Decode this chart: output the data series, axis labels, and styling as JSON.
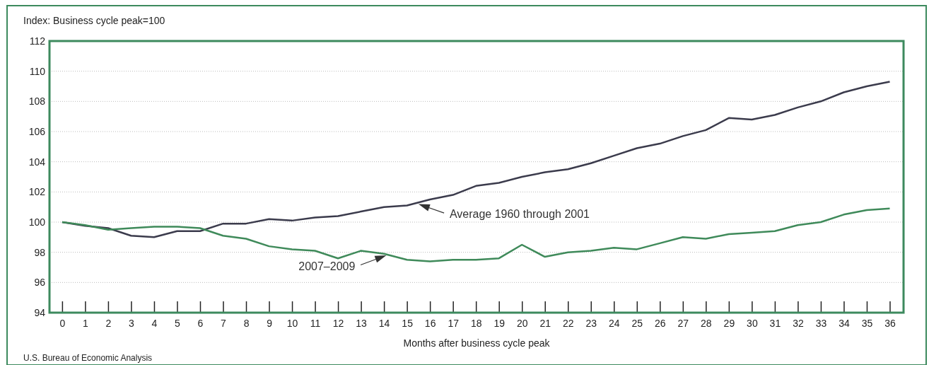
{
  "chart_data": {
    "type": "line",
    "ylabel": "Index: Business cycle peak=100",
    "xlabel": "Months after business cycle peak",
    "x": [
      0,
      1,
      2,
      3,
      4,
      5,
      6,
      7,
      8,
      9,
      10,
      11,
      12,
      13,
      14,
      15,
      16,
      17,
      18,
      19,
      20,
      21,
      22,
      23,
      24,
      25,
      26,
      27,
      28,
      29,
      30,
      31,
      32,
      33,
      34,
      35,
      36
    ],
    "xlim": [
      -0.55,
      36.6
    ],
    "xticks": [
      0,
      1,
      2,
      3,
      4,
      5,
      6,
      7,
      8,
      9,
      10,
      11,
      12,
      13,
      14,
      15,
      16,
      17,
      18,
      19,
      20,
      21,
      22,
      23,
      24,
      25,
      26,
      27,
      28,
      29,
      30,
      31,
      32,
      33,
      34,
      35,
      36
    ],
    "ylim": [
      94,
      112
    ],
    "yticks": [
      94,
      96,
      98,
      100,
      102,
      104,
      106,
      108,
      110,
      112
    ],
    "grid": "y",
    "line_style": "solid",
    "series": [
      {
        "color": "#3b3b4c",
        "values": [
          100,
          99.75,
          99.6,
          99.1,
          99.0,
          99.4,
          99.4,
          99.9,
          99.9,
          100.2,
          100.1,
          100.3,
          100.4,
          100.7,
          101.0,
          101.1,
          101.5,
          101.8,
          102.4,
          102.6,
          103.0,
          103.3,
          103.5,
          103.9,
          104.4,
          104.9,
          105.2,
          105.7,
          106.1,
          106.9,
          106.8,
          107.1,
          107.6,
          108.0,
          108.6,
          109.0,
          109.3
        ]
      },
      {
        "color": "#3f8a5a",
        "values": [
          100,
          99.8,
          99.5,
          99.6,
          99.7,
          99.7,
          99.6,
          99.1,
          98.9,
          98.4,
          98.2,
          98.1,
          97.6,
          98.1,
          97.9,
          97.5,
          97.4,
          97.5,
          97.5,
          97.6,
          98.5,
          97.7,
          98.0,
          98.1,
          98.3,
          98.2,
          98.6,
          99.0,
          98.9,
          99.2,
          99.3,
          99.4,
          99.8,
          100.0,
          100.5,
          100.8,
          100.9
        ]
      }
    ],
    "annotations": [
      {
        "text": "Average 1960 through 2001",
        "x": 15.5,
        "y": 101.2
      },
      {
        "text": "2007–2009",
        "x": 14.1,
        "y": 97.8
      },
      "U.S. Bureau of Economic Analysis"
    ]
  }
}
